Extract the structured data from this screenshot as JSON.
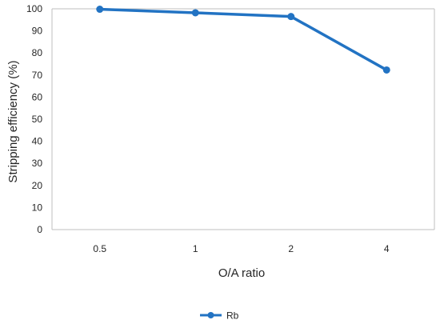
{
  "chart_data": {
    "type": "line",
    "categories": [
      "0.5",
      "1",
      "2",
      "4"
    ],
    "series": [
      {
        "name": "Rb",
        "values": [
          99.8,
          98.2,
          96.5,
          72.3
        ]
      }
    ],
    "title": "",
    "xlabel": "O/A ratio",
    "ylabel": "Stripping efficiency (%)",
    "ylim": [
      0,
      100
    ],
    "yticks": [
      0,
      10,
      20,
      30,
      40,
      50,
      60,
      70,
      80,
      90,
      100
    ],
    "grid": false,
    "legend": "bottom",
    "colors": {
      "series": "#2273C3",
      "axis": "#BFBFBF",
      "text": "#262626"
    }
  }
}
